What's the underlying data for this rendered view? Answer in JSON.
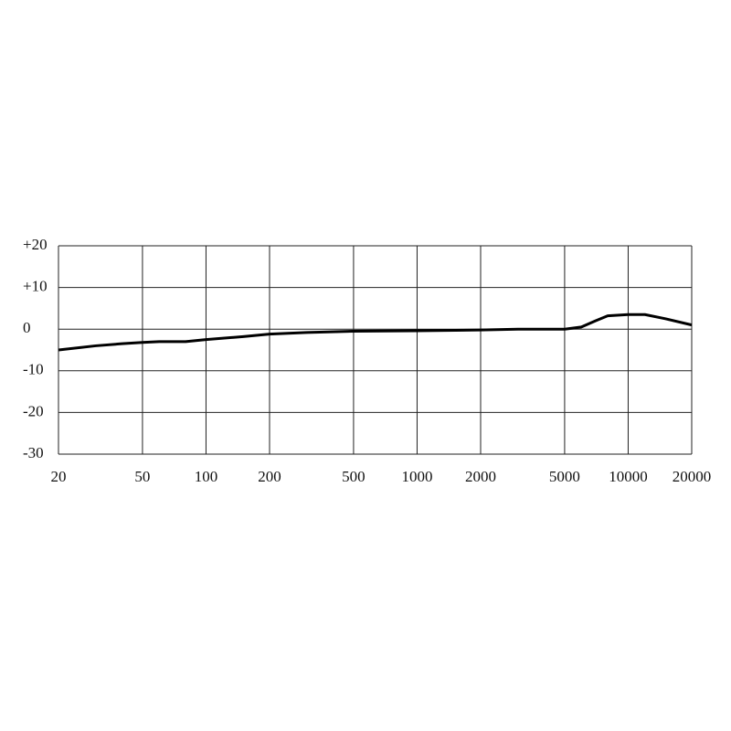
{
  "chart_data": {
    "type": "line",
    "log_x": true,
    "grid": true,
    "color": "#000000",
    "x": [
      20,
      30,
      40,
      50,
      60,
      80,
      100,
      150,
      200,
      300,
      500,
      1000,
      2000,
      3000,
      5000,
      6000,
      7000,
      8000,
      10000,
      12000,
      15000,
      20000
    ],
    "values": [
      -5,
      -4,
      -3.5,
      -3.2,
      -3,
      -3,
      -2.5,
      -1.8,
      -1.2,
      -0.8,
      -0.5,
      -0.4,
      -0.2,
      0,
      0,
      0.5,
      2,
      3.2,
      3.5,
      3.5,
      2.5,
      1
    ],
    "xlim": [
      20,
      20000
    ],
    "xticks": [
      20,
      50,
      100,
      200,
      500,
      1000,
      2000,
      5000,
      10000,
      20000
    ],
    "ylim": [
      -30,
      20
    ],
    "yticks": [
      {
        "value": 20,
        "label": "+20"
      },
      {
        "value": 10,
        "label": "+10"
      },
      0,
      -10,
      -20,
      -30
    ]
  }
}
